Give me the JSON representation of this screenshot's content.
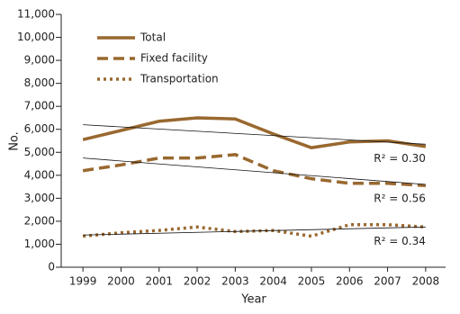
{
  "chart_data": {
    "type": "line",
    "x_label": "Year",
    "y_label": "No.",
    "categories": [
      "1999",
      "2000",
      "2001",
      "2002",
      "2003",
      "2004",
      "2005",
      "2006",
      "2007",
      "2008"
    ],
    "ylim": [
      0,
      11000
    ],
    "yticks": [
      0,
      {
        "value": 1000,
        "label": "1,000"
      },
      {
        "value": 2000,
        "label": "2,000"
      },
      {
        "value": 3000,
        "label": "3,000"
      },
      {
        "value": 4000,
        "label": "4,000"
      },
      {
        "value": 5000,
        "label": "5,000"
      },
      {
        "value": 6000,
        "label": "6,000"
      },
      {
        "value": 7000,
        "label": "7,000"
      },
      {
        "value": 8000,
        "label": "8,000"
      },
      {
        "value": 9000,
        "label": "9,000"
      },
      {
        "value": 10000,
        "label": "10,000"
      },
      {
        "value": 11000,
        "label": "11,000"
      }
    ],
    "legend": "top-left",
    "series": [
      {
        "name": "Total",
        "color": "#99682f",
        "dash": "solid",
        "values": [
          5550,
          5950,
          6350,
          6500,
          6450,
          5800,
          5200,
          5450,
          5500,
          5250
        ],
        "trend": [
          6200,
          5350
        ],
        "r2_label": "R² = 0.30"
      },
      {
        "name": "Fixed facility",
        "color": "#99682f",
        "dash": "dashed",
        "values": [
          4200,
          4450,
          4750,
          4750,
          4900,
          4200,
          3850,
          3650,
          3650,
          3550
        ],
        "trend": [
          4750,
          3600
        ],
        "r2_label": "R² = 0.56"
      },
      {
        "name": "Transportation",
        "color": "#99682f",
        "dash": "dotted",
        "values": [
          1350,
          1500,
          1600,
          1750,
          1550,
          1600,
          1350,
          1850,
          1850,
          1750
        ],
        "trend": [
          1400,
          1750
        ],
        "r2_label": "R² = 0.34"
      }
    ]
  }
}
